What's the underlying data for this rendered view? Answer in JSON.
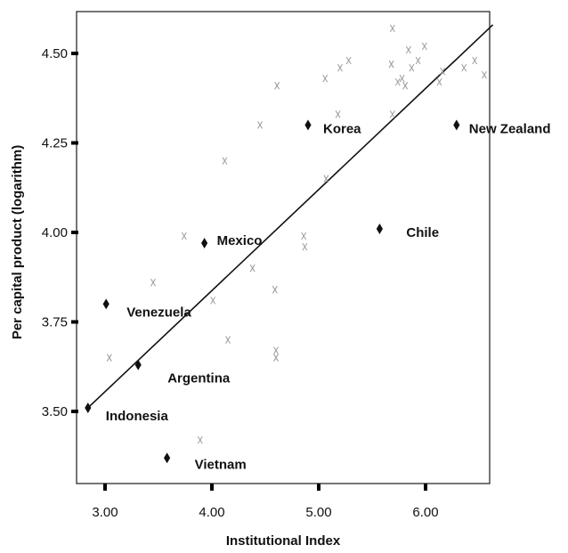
{
  "chart_data": {
    "type": "scatter",
    "title": "",
    "xlabel": "Institutional Index",
    "ylabel": "Per capital product (logarithm)",
    "xlim": [
      2.7,
      6.8
    ],
    "ylim": [
      3.28,
      4.62
    ],
    "x_ticks": [
      {
        "value": 3.0,
        "label": "3.00"
      },
      {
        "value": 4.0,
        "label": "4.00"
      },
      {
        "value": 5.0,
        "label": "5.00"
      },
      {
        "value": 6.0,
        "label": "6.00"
      }
    ],
    "y_ticks": [
      {
        "value": 3.5,
        "label": "3.50"
      },
      {
        "value": 3.75,
        "label": "3.75"
      },
      {
        "value": 4.0,
        "label": "4.00"
      },
      {
        "value": 4.25,
        "label": "4.25"
      },
      {
        "value": 4.5,
        "label": "4.50"
      }
    ],
    "grid": false,
    "fit_line": {
      "x": [
        2.84,
        6.63
      ],
      "y": [
        3.51,
        4.58
      ]
    },
    "highlighted_points": [
      {
        "name": "Korea",
        "x": 4.9,
        "y": 4.3
      },
      {
        "name": "New Zealand",
        "x": 6.29,
        "y": 4.3
      },
      {
        "name": "Mexico",
        "x": 3.93,
        "y": 3.97
      },
      {
        "name": "Chile",
        "x": 5.57,
        "y": 4.01
      },
      {
        "name": "Venezuela",
        "x": 3.01,
        "y": 3.8
      },
      {
        "name": "Argentina",
        "x": 3.31,
        "y": 3.63
      },
      {
        "name": "Indonesia",
        "x": 2.84,
        "y": 3.51
      },
      {
        "name": "Vietnam",
        "x": 3.58,
        "y": 3.37
      }
    ],
    "background_points": [
      {
        "x": 5.69,
        "y": 4.57
      },
      {
        "x": 5.99,
        "y": 4.52
      },
      {
        "x": 5.84,
        "y": 4.51
      },
      {
        "x": 5.28,
        "y": 4.48
      },
      {
        "x": 5.2,
        "y": 4.46
      },
      {
        "x": 5.68,
        "y": 4.47
      },
      {
        "x": 5.87,
        "y": 4.46
      },
      {
        "x": 5.93,
        "y": 4.48
      },
      {
        "x": 6.16,
        "y": 4.45
      },
      {
        "x": 6.46,
        "y": 4.48
      },
      {
        "x": 6.36,
        "y": 4.46
      },
      {
        "x": 6.55,
        "y": 4.44
      },
      {
        "x": 5.06,
        "y": 4.43
      },
      {
        "x": 5.74,
        "y": 4.42
      },
      {
        "x": 5.78,
        "y": 4.43
      },
      {
        "x": 5.81,
        "y": 4.41
      },
      {
        "x": 6.13,
        "y": 4.42
      },
      {
        "x": 4.61,
        "y": 4.41
      },
      {
        "x": 5.18,
        "y": 4.33
      },
      {
        "x": 5.69,
        "y": 4.33
      },
      {
        "x": 4.45,
        "y": 4.3
      },
      {
        "x": 4.12,
        "y": 4.2
      },
      {
        "x": 5.07,
        "y": 4.15
      },
      {
        "x": 3.74,
        "y": 3.99
      },
      {
        "x": 4.86,
        "y": 3.99
      },
      {
        "x": 4.87,
        "y": 3.96
      },
      {
        "x": 4.38,
        "y": 3.9
      },
      {
        "x": 3.45,
        "y": 3.86
      },
      {
        "x": 4.59,
        "y": 3.84
      },
      {
        "x": 4.01,
        "y": 3.81
      },
      {
        "x": 4.15,
        "y": 3.7
      },
      {
        "x": 4.6,
        "y": 3.67
      },
      {
        "x": 4.6,
        "y": 3.65
      },
      {
        "x": 3.04,
        "y": 3.65
      },
      {
        "x": 3.89,
        "y": 3.42
      }
    ]
  }
}
